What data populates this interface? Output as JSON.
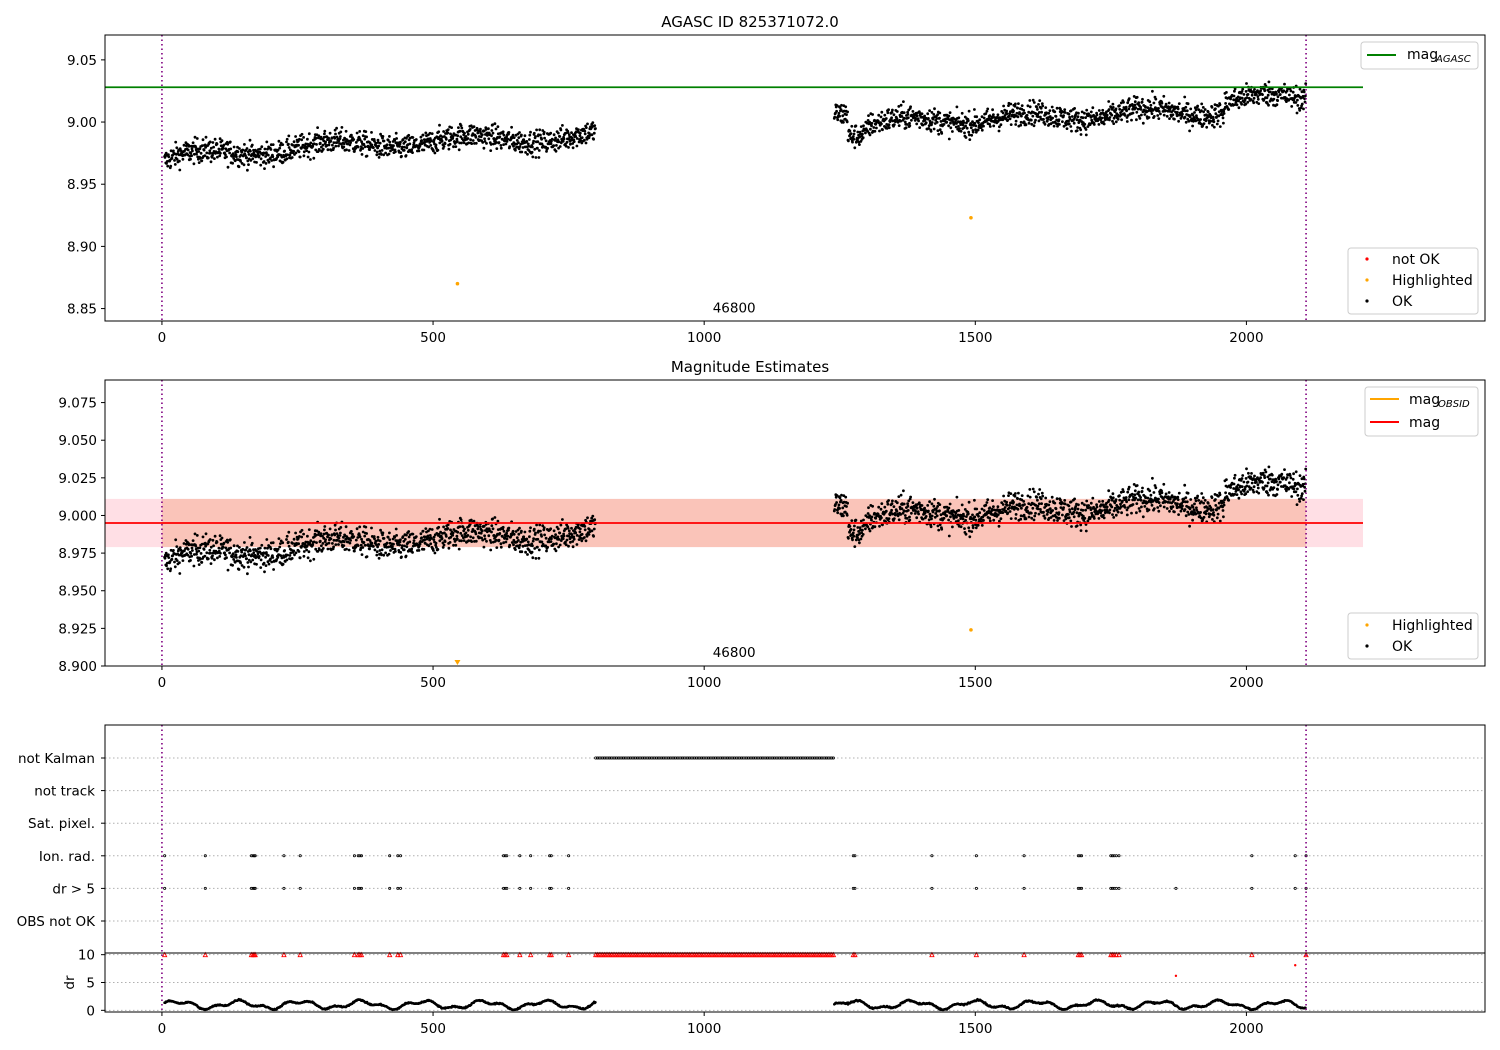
{
  "chart_data": [
    {
      "type": "scatter",
      "title": "AGASC ID 825371072.0",
      "xlim": [
        -105,
        2440
      ],
      "ylim": [
        8.84,
        9.07
      ],
      "xticks": [
        0,
        500,
        1000,
        1500,
        2000
      ],
      "yticks": [
        8.85,
        8.9,
        8.95,
        9.0,
        9.05
      ],
      "ytick_labels": [
        "8.85",
        "8.90",
        "8.95",
        "9.00",
        "9.05"
      ],
      "obsid_marker": {
        "x": 1000,
        "y": 8.85,
        "label": "46800"
      },
      "vlines": [
        0,
        2110
      ],
      "hlines": [
        {
          "name": "mag_AGASC",
          "y": 9.028,
          "x_range": [
            -105,
            2215
          ],
          "color": "#008000"
        }
      ],
      "legend_upper": {
        "position": "upper right",
        "entries": [
          {
            "label": "mag",
            "subscript": "AGASC",
            "color": "#008000"
          }
        ]
      },
      "legend_lower": {
        "position": "lower right",
        "entries": [
          {
            "label": "not OK",
            "color": "#ff0000"
          },
          {
            "label": "Highlighted",
            "color": "#ffa500"
          },
          {
            "label": "OK",
            "color": "#000000"
          }
        ]
      },
      "highlighted_points": [
        {
          "x": 545,
          "y": 8.87
        },
        {
          "x": 1492,
          "y": 8.923
        }
      ],
      "ok_series": {
        "segments": [
          {
            "x": [
              5,
              800
            ],
            "mean_start": 8.968,
            "mean_end": 8.99,
            "spread": 0.012
          },
          {
            "x": [
              1240,
              2110
            ],
            "mean_start": 9.0,
            "mean_end": 9.015,
            "spread": 0.012
          }
        ]
      }
    },
    {
      "type": "scatter",
      "title": "Magnitude Estimates",
      "xlim": [
        -105,
        2440
      ],
      "ylim": [
        8.9,
        9.09
      ],
      "xticks": [
        0,
        500,
        1000,
        1500,
        2000
      ],
      "yticks": [
        8.9,
        8.925,
        8.95,
        8.975,
        9.0,
        9.025,
        9.05,
        9.075
      ],
      "ytick_labels": [
        "8.900",
        "8.925",
        "8.950",
        "8.975",
        "9.000",
        "9.025",
        "9.050",
        "9.075"
      ],
      "obsid_marker": {
        "x": 1000,
        "y": 8.904,
        "label": "46800"
      },
      "vlines": [
        0,
        2110
      ],
      "hlines": [
        {
          "name": "mag",
          "y": 8.995,
          "x_range": [
            -105,
            2215
          ],
          "color": "#ff0000"
        }
      ],
      "bands": [
        {
          "name": "mag_obsid_band",
          "y": [
            8.979,
            9.011
          ],
          "x_range": [
            0,
            2110
          ],
          "color": "#f4a582"
        },
        {
          "name": "mag_band",
          "y": [
            8.979,
            9.011
          ],
          "x_range": [
            -105,
            2215
          ],
          "color": "#ffc0cb"
        }
      ],
      "legend_upper": {
        "position": "upper right",
        "entries": [
          {
            "label": "mag",
            "subscript": "OBSID",
            "color": "#ffa500"
          },
          {
            "label": "mag",
            "subscript": "",
            "color": "#ff0000"
          }
        ]
      },
      "legend_lower": {
        "position": "lower right",
        "entries": [
          {
            "label": "Highlighted",
            "color": "#ffa500"
          },
          {
            "label": "OK",
            "color": "#000000"
          }
        ]
      },
      "highlighted_points": [
        {
          "x": 1492,
          "y": 8.924
        }
      ],
      "out_of_range_points": [
        {
          "x": 545,
          "y": 8.9
        }
      ]
    },
    {
      "type": "scatter",
      "title": "",
      "xlim": [
        -105,
        2440
      ],
      "xticks": [
        0,
        500,
        1000,
        1500,
        2000
      ],
      "flag_rows": [
        "not Kalman",
        "not track",
        "Sat. pixel.",
        "Ion. rad.",
        "dr > 5",
        "OBS not OK"
      ],
      "flags": {
        "not Kalman": {
          "ranges": [
            [
              800,
              1240
            ]
          ],
          "points": []
        },
        "not track": {
          "ranges": [],
          "points": []
        },
        "Sat. pixel.": {
          "ranges": [],
          "points": []
        },
        "Ion. rad.": {
          "ranges": [],
          "points": [
            5,
            80,
            165,
            168,
            170,
            172,
            225,
            255,
            355,
            362,
            365,
            368,
            420,
            435,
            440,
            630,
            633,
            636,
            660,
            680,
            715,
            718,
            750,
            1275,
            1278,
            1420,
            1502,
            1590,
            1690,
            1693,
            1696,
            1750,
            1753,
            1756,
            1760,
            1765,
            2010,
            2090,
            2110
          ]
        },
        "dr > 5": {
          "ranges": [],
          "points": [
            5,
            80,
            165,
            168,
            170,
            172,
            225,
            255,
            355,
            362,
            365,
            368,
            420,
            435,
            440,
            630,
            633,
            636,
            660,
            680,
            715,
            718,
            750,
            1275,
            1278,
            1420,
            1502,
            1590,
            1690,
            1693,
            1696,
            1750,
            1753,
            1756,
            1760,
            1765,
            1870,
            2010,
            2090,
            2110
          ]
        },
        "OBS not OK": {
          "ranges": [],
          "points": []
        }
      },
      "dr_panel": {
        "ylabel": "dr",
        "ylim": [
          -0.3,
          10.3
        ],
        "yticks": [
          0,
          5,
          10
        ],
        "ytick_labels": [
          "0",
          "5",
          "10"
        ],
        "clipped_at": 10,
        "clipped_ranges": [
          [
            800,
            1240
          ]
        ],
        "clipped_points": [
          5,
          80,
          165,
          168,
          170,
          172,
          225,
          255,
          355,
          362,
          365,
          368,
          420,
          435,
          440,
          630,
          633,
          636,
          660,
          680,
          715,
          718,
          750,
          1275,
          1278,
          1420,
          1502,
          1590,
          1690,
          1693,
          1696,
          1750,
          1753,
          1756,
          1760,
          1765,
          2010,
          2110
        ],
        "outliers": [
          {
            "x": 1870,
            "y": 6.2
          },
          {
            "x": 2090,
            "y": 8.1
          }
        ],
        "baseline_mean": 1.0
      }
    }
  ]
}
